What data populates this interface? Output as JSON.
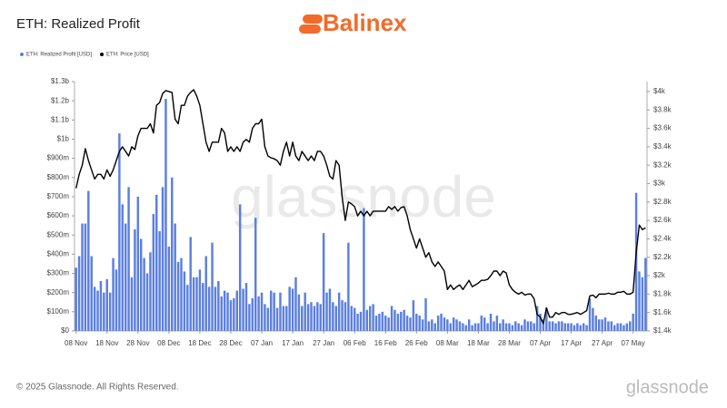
{
  "chart_data": {
    "type": "bar-line",
    "title": "ETH: Realized Profit",
    "brand": "Balinex",
    "watermark": "glassnode",
    "footer": "© 2025 Glassnode. All Rights Reserved.",
    "footer_logo": "glassnode",
    "categories": [
      "08 Nov",
      null,
      null,
      null,
      null,
      null,
      null,
      null,
      null,
      null,
      "18 Nov",
      null,
      null,
      null,
      null,
      null,
      null,
      null,
      null,
      null,
      "28 Nov",
      null,
      null,
      null,
      null,
      null,
      null,
      null,
      null,
      null,
      "08 Dec",
      null,
      null,
      null,
      null,
      null,
      null,
      null,
      null,
      null,
      "18 Dec",
      null,
      null,
      null,
      null,
      null,
      null,
      null,
      null,
      null,
      "28 Dec",
      null,
      null,
      null,
      null,
      null,
      null,
      null,
      null,
      null,
      "07 Jan",
      null,
      null,
      null,
      null,
      null,
      null,
      null,
      null,
      null,
      "17 Jan",
      null,
      null,
      null,
      null,
      null,
      null,
      null,
      null,
      null,
      "27 Jan",
      null,
      null,
      null,
      null,
      null,
      null,
      null,
      null,
      null,
      "06 Feb",
      null,
      null,
      null,
      null,
      null,
      null,
      null,
      null,
      null,
      "16 Feb",
      null,
      null,
      null,
      null,
      null,
      null,
      null,
      null,
      null,
      "26 Feb",
      null,
      null,
      null,
      null,
      null,
      null,
      null,
      null,
      null,
      "08 Mar",
      null,
      null,
      null,
      null,
      null,
      null,
      null,
      null,
      null,
      "18 Mar",
      null,
      null,
      null,
      null,
      null,
      null,
      null,
      null,
      null,
      "28 Mar",
      null,
      null,
      null,
      null,
      null,
      null,
      null,
      null,
      null,
      "07 Apr",
      null,
      null,
      null,
      null,
      null,
      null,
      null,
      null,
      null,
      "17 Apr",
      null,
      null,
      null,
      null,
      null,
      null,
      null,
      null,
      null,
      "27 Apr",
      null,
      null,
      null,
      null,
      null,
      null,
      null,
      null,
      null,
      "07 May",
      null,
      null,
      null,
      null
    ],
    "series": [
      {
        "name": "ETH: Realized Profit [USD]",
        "type": "bar",
        "color": "#5b7fde",
        "values": [
          330000000.0,
          390000000.0,
          560000000.0,
          560000000.0,
          730000000.0,
          390000000.0,
          230000000.0,
          210000000.0,
          260000000.0,
          200000000.0,
          270000000.0,
          200000000.0,
          380000000.0,
          320000000.0,
          1030000000.0,
          660000000.0,
          560000000.0,
          750000000.0,
          280000000.0,
          530000000.0,
          700000000.0,
          480000000.0,
          380000000.0,
          300000000.0,
          410000000.0,
          610000000.0,
          710000000.0,
          520000000.0,
          750000000.0,
          1210000000.0,
          440000000.0,
          800000000.0,
          560000000.0,
          360000000.0,
          380000000.0,
          310000000.0,
          240000000.0,
          490000000.0,
          280000000.0,
          280000000.0,
          320000000.0,
          250000000.0,
          390000000.0,
          230000000.0,
          460000000.0,
          230000000.0,
          260000000.0,
          180000000.0,
          210000000.0,
          200000000.0,
          160000000.0,
          170000000.0,
          210000000.0,
          660000000.0,
          220000000.0,
          250000000.0,
          140000000.0,
          170000000.0,
          590000000.0,
          180000000.0,
          200000000.0,
          140000000.0,
          120000000.0,
          210000000.0,
          200000000.0,
          120000000.0,
          200000000.0,
          130000000.0,
          130000000.0,
          230000000.0,
          220000000.0,
          280000000.0,
          190000000.0,
          130000000.0,
          200000000.0,
          140000000.0,
          150000000.0,
          130000000.0,
          150000000.0,
          140000000.0,
          510000000.0,
          200000000.0,
          220000000.0,
          150000000.0,
          130000000.0,
          200000000.0,
          160000000.0,
          150000000.0,
          460000000.0,
          130000000.0,
          120000000.0,
          90000000.0,
          100000000.0,
          640000000.0,
          110000000.0,
          130000000.0,
          140000000.0,
          80000000.0,
          90000000.0,
          100000000.0,
          80000000.0,
          70000000.0,
          130000000.0,
          110000000.0,
          90000000.0,
          100000000.0,
          110000000.0,
          80000000.0,
          70000000.0,
          160000000.0,
          90000000.0,
          80000000.0,
          60000000.0,
          170000000.0,
          50000000.0,
          60000000.0,
          40000000.0,
          80000000.0,
          90000000.0,
          70000000.0,
          60000000.0,
          40000000.0,
          70000000.0,
          60000000.0,
          50000000.0,
          40000000.0,
          30000000.0,
          60000000.0,
          30000000.0,
          40000000.0,
          40000000.0,
          80000000.0,
          70000000.0,
          40000000.0,
          90000000.0,
          50000000.0,
          80000000.0,
          40000000.0,
          60000000.0,
          40000000.0,
          40000000.0,
          30000000.0,
          50000000.0,
          40000000.0,
          30000000.0,
          60000000.0,
          50000000.0,
          50000000.0,
          40000000.0,
          130000000.0,
          90000000.0,
          60000000.0,
          120000000.0,
          50000000.0,
          50000000.0,
          40000000.0,
          50000000.0,
          50000000.0,
          40000000.0,
          40000000.0,
          40000000.0,
          30000000.0,
          40000000.0,
          30000000.0,
          40000000.0,
          30000000.0,
          170000000.0,
          120000000.0,
          80000000.0,
          60000000.0,
          60000000.0,
          70000000.0,
          50000000.0,
          50000000.0,
          30000000.0,
          40000000.0,
          40000000.0,
          30000000.0,
          40000000.0,
          50000000.0,
          90000000.0,
          720000000.0,
          310000000.0,
          280000000.0,
          380000000.0
        ]
      },
      {
        "name": "ETH: Price [USD]",
        "type": "line",
        "axis": "y2",
        "color": "#000000",
        "values": [
          2950,
          3100,
          3200,
          3380,
          3250,
          3150,
          3050,
          3100,
          3100,
          3050,
          3150,
          3080,
          3150,
          3250,
          3350,
          3400,
          3350,
          3300,
          3400,
          3370,
          3520,
          3600,
          3600,
          3600,
          3650,
          3550,
          3850,
          3880,
          3980,
          4010,
          4000,
          3990,
          3700,
          3650,
          3850,
          3850,
          3950,
          3990,
          4020,
          3950,
          3850,
          3650,
          3450,
          3350,
          3450,
          3450,
          3450,
          3600,
          3550,
          3350,
          3400,
          3350,
          3400,
          3350,
          3450,
          3480,
          3450,
          3600,
          3650,
          3650,
          3700,
          3400,
          3300,
          3280,
          3270,
          3250,
          3200,
          3350,
          3450,
          3300,
          3450,
          3300,
          3250,
          3350,
          3300,
          3250,
          3300,
          3250,
          3350,
          3350,
          3300,
          3200,
          3080,
          3050,
          3250,
          3200,
          2850,
          2600,
          2800,
          2780,
          2750,
          2650,
          2700,
          2650,
          2700,
          2650,
          2700,
          2700,
          2700,
          2700,
          2700,
          2750,
          2720,
          2750,
          2700,
          2740,
          2750,
          2650,
          2500,
          2400,
          2300,
          2400,
          2300,
          2200,
          2250,
          2150,
          2100,
          2150,
          2100,
          2050,
          1850,
          1900,
          1850,
          1880,
          1900,
          1850,
          1900,
          1950,
          1880,
          1900,
          1920,
          1950,
          1950,
          1960,
          2000,
          2050,
          2050,
          2000,
          2050,
          2030,
          1900,
          1850,
          1820,
          1800,
          1820,
          1790,
          1800,
          1800,
          1750,
          1580,
          1550,
          1480,
          1650,
          1550,
          1550,
          1600,
          1580,
          1600,
          1600,
          1580,
          1580,
          1590,
          1600,
          1580,
          1600,
          1620,
          1780,
          1790,
          1760,
          1800,
          1800,
          1800,
          1810,
          1800,
          1800,
          1820,
          1820,
          1830,
          1800,
          1800,
          1820,
          2250,
          2550,
          2500,
          2520
        ]
      }
    ],
    "ylim": [
      0,
      1300000000.0
    ],
    "yticks": [
      {
        "value": 0,
        "label": "$0"
      },
      {
        "value": 100000000.0,
        "label": "$100m"
      },
      {
        "value": 200000000.0,
        "label": "$200m"
      },
      {
        "value": 300000000.0,
        "label": "$300m"
      },
      {
        "value": 400000000.0,
        "label": "$400m"
      },
      {
        "value": 500000000.0,
        "label": "$500m"
      },
      {
        "value": 600000000.0,
        "label": "$600m"
      },
      {
        "value": 700000000.0,
        "label": "$700m"
      },
      {
        "value": 800000000.0,
        "label": "$800m"
      },
      {
        "value": 900000000.0,
        "label": "$900m"
      },
      {
        "value": 1000000000.0,
        "label": "$1b"
      },
      {
        "value": 1100000000.0,
        "label": "$1.1b"
      },
      {
        "value": 1200000000.0,
        "label": "$1.2b"
      },
      {
        "value": 1300000000.0,
        "label": "$1.3b"
      }
    ],
    "y2lim": [
      1400,
      4108
    ],
    "y2ticks": [
      {
        "value": 1400,
        "label": "$1.4k"
      },
      {
        "value": 1600,
        "label": "$1.6k"
      },
      {
        "value": 1800,
        "label": "$1.8k"
      },
      {
        "value": 2000,
        "label": "$2k"
      },
      {
        "value": 2200,
        "label": "$2.2k"
      },
      {
        "value": 2400,
        "label": "$2.4k"
      },
      {
        "value": 2600,
        "label": "$2.6k"
      },
      {
        "value": 2800,
        "label": "$2.8k"
      },
      {
        "value": 3000,
        "label": "$3k"
      },
      {
        "value": 3200,
        "label": "$3.2k"
      },
      {
        "value": 3400,
        "label": "$3.4k"
      },
      {
        "value": 3600,
        "label": "$3.6k"
      },
      {
        "value": 3800,
        "label": "$3.8k"
      },
      {
        "value": 4000,
        "label": "$4k"
      }
    ]
  }
}
